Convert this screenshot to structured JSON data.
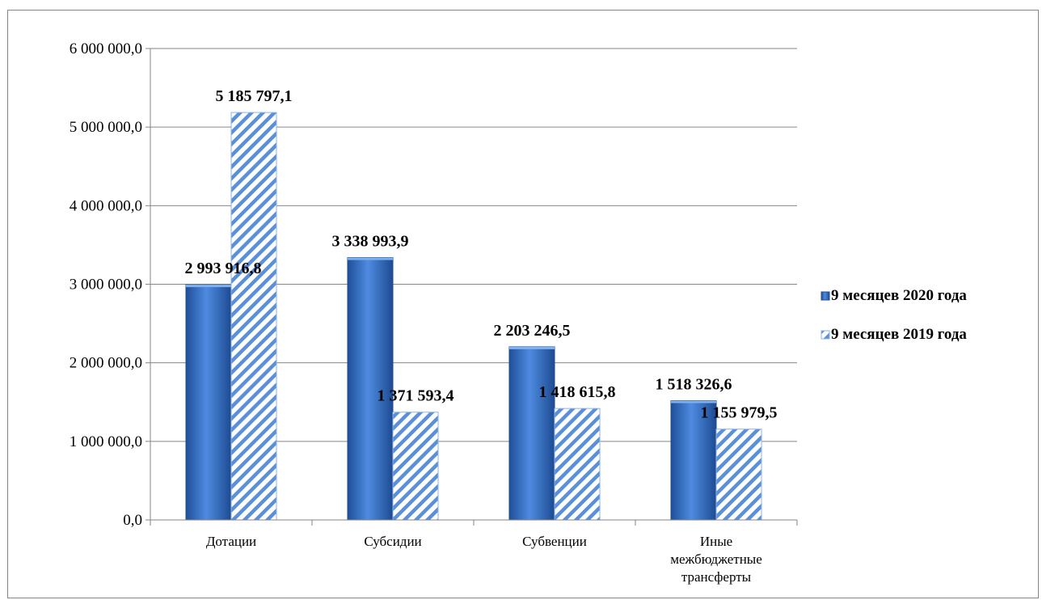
{
  "chart_data": {
    "type": "bar",
    "title": "",
    "xlabel": "",
    "ylabel": "",
    "ylim": [
      0,
      6000000
    ],
    "yticks": [
      0,
      1000000,
      2000000,
      3000000,
      4000000,
      5000000,
      6000000
    ],
    "ytick_labels": [
      "0,0",
      "1 000 000,0",
      "2 000 000,0",
      "3 000 000,0",
      "4 000 000,0",
      "5 000 000,0",
      "6 000 000,0"
    ],
    "grid": true,
    "legend_position": "right",
    "categories": [
      [
        "Дотации"
      ],
      [
        "Субсидии"
      ],
      [
        "Субвенции"
      ],
      [
        "Иные",
        "межбюджетные",
        "трансферты"
      ]
    ],
    "series": [
      {
        "name": "9 месяцев 2020 года",
        "color": "#3a72c4",
        "style": "solid",
        "values": [
          2993916.8,
          3338993.9,
          2203246.5,
          1518326.6
        ],
        "labels": [
          "2 993 916,8",
          "3 338 993,9",
          "2 203 246,5",
          "1 518 326,6"
        ]
      },
      {
        "name": "9 месяцев 2019 года",
        "color": "#5b8fd8",
        "style": "hatched",
        "values": [
          5185797.1,
          1371593.4,
          1418615.8,
          1155979.5
        ],
        "labels": [
          "5 185 797,1",
          "1 371 593,4",
          "1 418 615,8",
          "1 155 979,5"
        ]
      }
    ]
  }
}
